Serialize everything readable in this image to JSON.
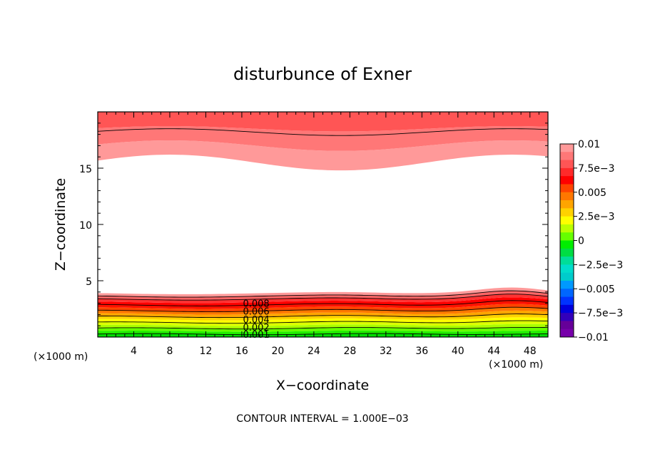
{
  "chart_data": {
    "type": "contour",
    "title": "disturbunce of Exner",
    "xlabel": "X−coordinate",
    "ylabel": "Z−coordinate",
    "x_unit_left": "(×1000 m)",
    "x_unit_right": "(×1000 m)",
    "xlim": [
      0,
      50
    ],
    "ylim": [
      0,
      20
    ],
    "x_ticks": [
      4,
      8,
      12,
      16,
      20,
      24,
      28,
      32,
      36,
      40,
      44,
      48
    ],
    "y_ticks": [
      5,
      10,
      15
    ],
    "footer": "CONTOUR INTERVAL = 1.000E−03",
    "contour_labels": [
      "0.008",
      "0.006",
      "0.004",
      "0.002",
      "0.001"
    ],
    "colorbar": {
      "tick_labels": [
        "0.01",
        "7.5e−3",
        "0.005",
        "2.5e−3",
        "0",
        "−2.5e−3",
        "−0.005",
        "−7.5e−3",
        "−0.01"
      ],
      "colors_top_to_bottom": [
        "#ff9999",
        "#ff7777",
        "#ff5555",
        "#ff2a2a",
        "#ff0000",
        "#ff4400",
        "#ff7700",
        "#ffa500",
        "#ffd200",
        "#ffff00",
        "#bbff00",
        "#66ff00",
        "#00ee00",
        "#00dd44",
        "#00dd99",
        "#00ddcc",
        "#00cccc",
        "#0099ff",
        "#0066ff",
        "#0033ff",
        "#0000dd",
        "#3300bb",
        "#660099",
        "#7700aa"
      ]
    },
    "bottom_layer_colors": [
      "#00dd00",
      "#22ee00",
      "#66ff00",
      "#aaff00",
      "#ddff00",
      "#ffff00",
      "#ffd200",
      "#ffa500",
      "#ff7700",
      "#ff4400",
      "#ff1100",
      "#ff0000",
      "#ff3333",
      "#ff6666",
      "#ff9999"
    ],
    "top_layer_colors": [
      "#ff9999",
      "#ff7777",
      "#ff5555"
    ]
  }
}
